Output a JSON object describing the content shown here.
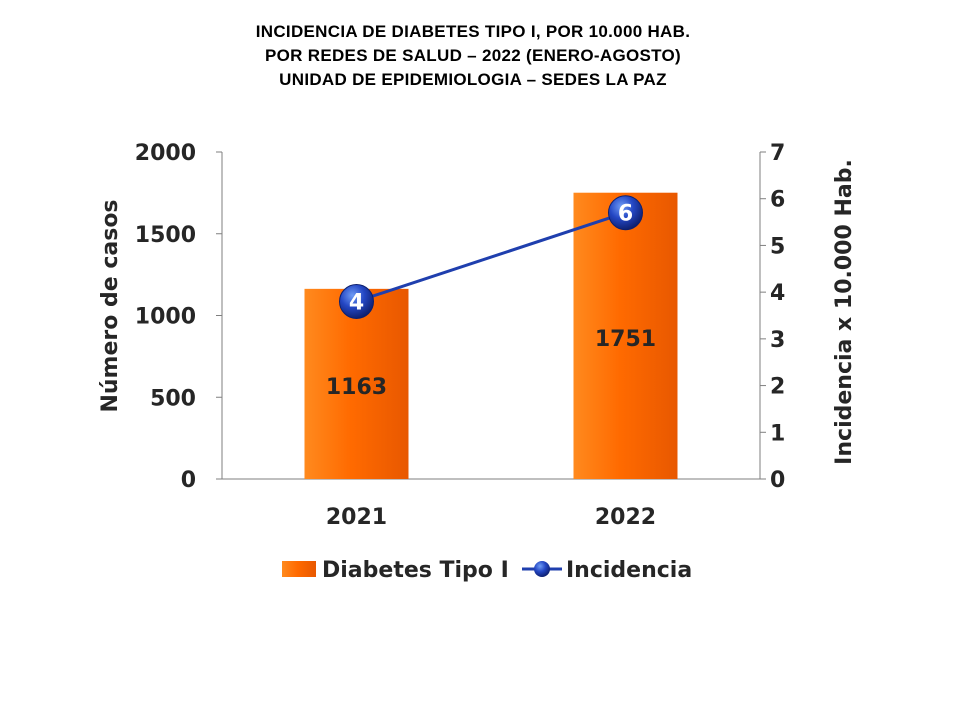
{
  "title_lines": [
    "INCIDENCIA  DE  DIABETES  TIPO  I,  POR  10.000  HAB.",
    "POR  REDES  DE  SALUD  –  2022  (ENERO-AGOSTO)",
    "UNIDAD DE EPIDEMIOLOGIA – SEDES LA PAZ"
  ],
  "chart_data": {
    "type": "bar",
    "categories": [
      "2021",
      "2022"
    ],
    "series": [
      {
        "name": "Diabetes Tipo I",
        "kind": "bar",
        "axis": "left",
        "values": [
          1163,
          1751
        ],
        "color": "#ff6600"
      },
      {
        "name": "Incidencia",
        "kind": "line",
        "axis": "right",
        "values": [
          3.8,
          5.7
        ],
        "labels": [
          "4",
          "6"
        ],
        "color": "#1f3fae"
      }
    ],
    "ylabel": "Número de casos",
    "y2label": "Incidencia x 10.000 Hab.",
    "ylim": [
      0,
      2000
    ],
    "yticks": [
      "0",
      "500",
      "1000",
      "1500",
      "2000"
    ],
    "y2lim": [
      0,
      7
    ],
    "y2ticks": [
      "0",
      "1",
      "2",
      "3",
      "4",
      "5",
      "6",
      "7"
    ],
    "legend_position": "bottom",
    "grid": false
  }
}
